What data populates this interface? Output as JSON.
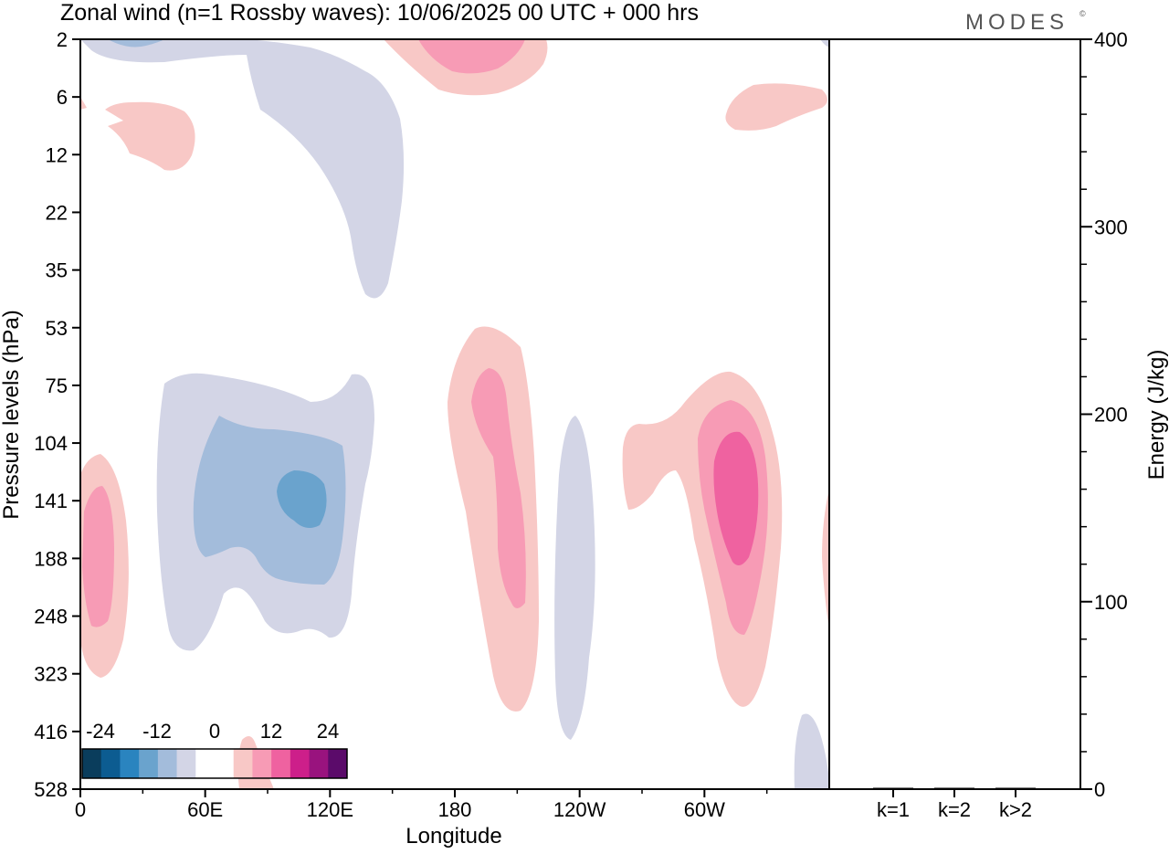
{
  "header": {
    "title": "Zonal wind (n=1 Rossby waves):  10/06/2025  00 UTC  + 000 hrs",
    "logo": "MODES",
    "logo_mark": "©"
  },
  "chart_data": [
    {
      "type": "heatmap",
      "title": "Zonal wind (n=1 Rossby waves):  10/06/2025  00 UTC  + 000 hrs",
      "xlabel": "Longitude",
      "ylabel": "Pressure levels (hPa)",
      "x_ticks": [
        "0",
        "60E",
        "120E",
        "180",
        "120W",
        "60W"
      ],
      "x_tick_lon": [
        0,
        60,
        120,
        180,
        240,
        300
      ],
      "x_range": [
        0,
        360
      ],
      "y_ticks": [
        "2",
        "6",
        "12",
        "22",
        "35",
        "53",
        "75",
        "104",
        "141",
        "188",
        "248",
        "323",
        "416",
        "528"
      ],
      "y_scale": "pressure levels (decreasing upward)",
      "colorbar": {
        "labels": [
          "-24",
          "-12",
          "0",
          "12",
          "24"
        ],
        "levels": [
          -24,
          -12,
          0,
          12,
          24
        ],
        "colors": [
          "#0a3d5c",
          "#0c5c91",
          "#2a84bf",
          "#6aa3cd",
          "#a3bcdb",
          "#d3d5e6",
          "#ffffff",
          "#ffffff",
          "#f8c8c6",
          "#f79bb5",
          "#ef62a0",
          "#cd1f8a",
          "#99137e",
          "#5b0b6a"
        ]
      },
      "features": [
        {
          "sign": "negative",
          "level": -12,
          "lon": 100,
          "pressure": "141",
          "label": "easterly max near 100E"
        },
        {
          "sign": "negative",
          "level": -6,
          "lon": 85,
          "pressure": "141",
          "label": "easterly region 30E-130E"
        },
        {
          "sign": "positive",
          "level": 12,
          "lon": 295,
          "pressure": "141",
          "label": "westerly max near 65W"
        },
        {
          "sign": "positive",
          "level": 6,
          "lon": 195,
          "pressure": "188",
          "label": "westerly region near 165W"
        },
        {
          "sign": "positive",
          "level": 6,
          "lon": 5,
          "pressure": "188",
          "label": "westerly region near 5E"
        },
        {
          "sign": "positive",
          "level": 6,
          "lon": 185,
          "pressure": "2",
          "label": "upper westerly near 175W"
        }
      ]
    },
    {
      "type": "bar",
      "ylabel": "Energy (J/kg)",
      "categories": [
        "k=1",
        "k=2",
        "k>2"
      ],
      "values": [
        0.4,
        0.3,
        0.3
      ],
      "ylim": [
        0,
        400
      ],
      "y_ticks": [
        "0",
        "100",
        "200",
        "300",
        "400"
      ]
    }
  ]
}
